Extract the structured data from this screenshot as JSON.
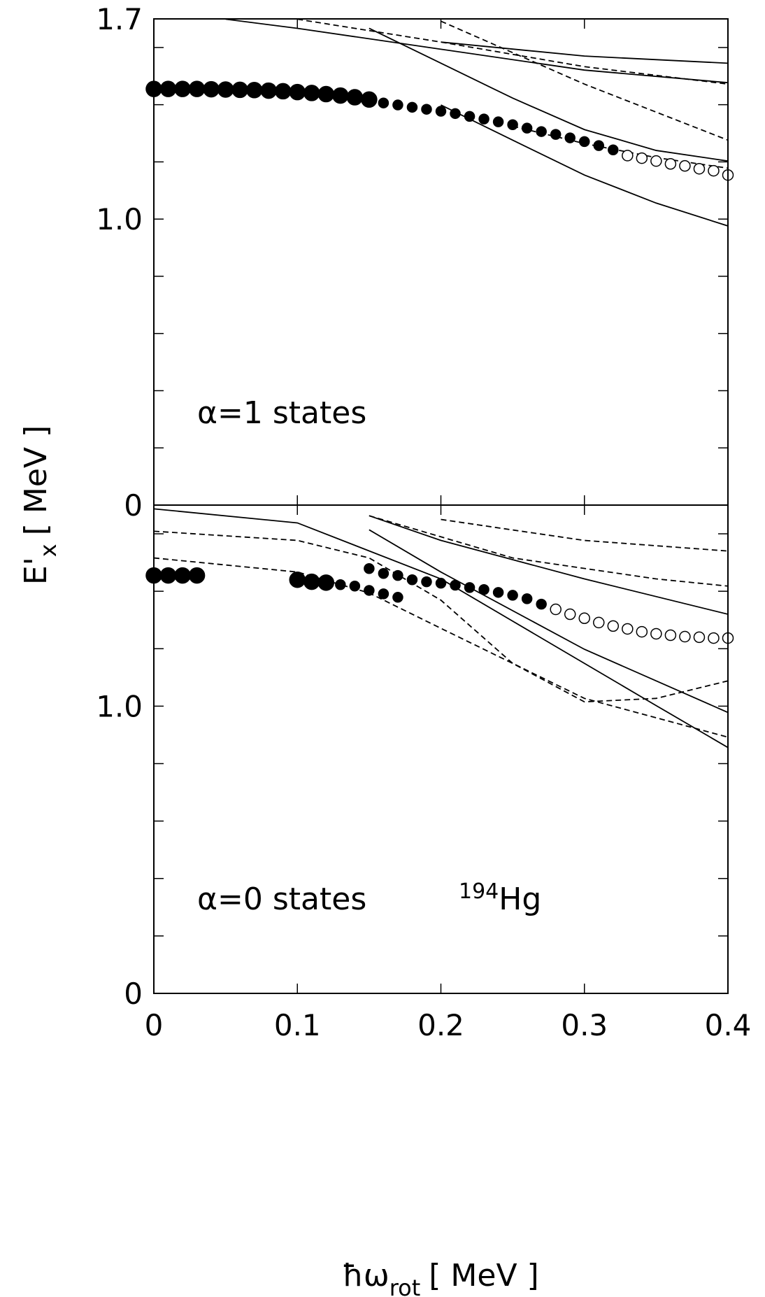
{
  "chart_data": [
    {
      "type": "scatter",
      "ylabel": {
        "main": "E'",
        "sub": "x",
        "unit": "[ MeV ]"
      },
      "annotation": "α=1 states",
      "xlim": [
        0,
        0.4
      ],
      "ylim": [
        0,
        1.7
      ],
      "xticks": [
        0,
        0.1,
        0.2,
        0.3,
        0.4
      ],
      "xtick_labels": false,
      "yticks": [
        0,
        {
          "value": 1,
          "label": "1.0"
        },
        1.7
      ],
      "yminor": [
        0.2,
        0.4,
        0.6,
        0.8,
        1.2,
        1.4,
        1.6
      ],
      "series": [
        {
          "marker": "filled-large",
          "color": "#000",
          "x": [
            0,
            0.01,
            0.02,
            0.03,
            0.04,
            0.05,
            0.06,
            0.07,
            0.08,
            0.09,
            0.1,
            0.11,
            0.12,
            0.13,
            0.14,
            0.15
          ],
          "values": [
            1.455,
            1.455,
            1.455,
            1.455,
            1.454,
            1.453,
            1.452,
            1.451,
            1.449,
            1.447,
            1.444,
            1.441,
            1.437,
            1.432,
            1.426,
            1.418
          ]
        },
        {
          "marker": "filled-small",
          "color": "#000",
          "x": [
            0.16,
            0.17,
            0.18,
            0.19,
            0.2,
            0.21,
            0.22,
            0.23,
            0.24,
            0.25,
            0.26,
            0.27,
            0.28,
            0.29,
            0.3,
            0.31,
            0.32
          ],
          "values": [
            1.406,
            1.399,
            1.391,
            1.384,
            1.377,
            1.369,
            1.359,
            1.35,
            1.34,
            1.33,
            1.318,
            1.306,
            1.296,
            1.284,
            1.271,
            1.257,
            1.242
          ]
        },
        {
          "marker": "open",
          "color": "#000",
          "x": [
            0.33,
            0.34,
            0.35,
            0.36,
            0.37,
            0.38,
            0.39,
            0.4
          ],
          "values": [
            1.222,
            1.213,
            1.203,
            1.193,
            1.186,
            1.176,
            1.169,
            1.154
          ]
        },
        {
          "line": "solid",
          "color": "#000",
          "x": [
            0.2,
            0.25,
            0.3,
            0.35,
            0.4
          ],
          "values": [
            1.399,
            1.276,
            1.154,
            1.056,
            0.976
          ]
        },
        {
          "line": "solid",
          "color": "#000",
          "x": [
            0.15,
            0.2,
            0.25,
            0.3,
            0.35,
            0.4
          ],
          "values": [
            1.667,
            1.545,
            1.423,
            1.313,
            1.24,
            1.203
          ]
        },
        {
          "line": "solid",
          "color": "#000",
          "x": [
            0.05,
            0.1,
            0.2,
            0.3,
            0.4
          ],
          "values": [
            1.699,
            1.667,
            1.594,
            1.521,
            1.477
          ]
        },
        {
          "line": "solid",
          "color": "#000",
          "x": [
            0.2,
            0.3,
            0.4
          ],
          "values": [
            1.619,
            1.57,
            1.545
          ]
        },
        {
          "line": "dashed",
          "color": "#000",
          "x": [
            0.25,
            0.3,
            0.35,
            0.4
          ],
          "values": [
            1.325,
            1.264,
            1.215,
            1.178
          ]
        },
        {
          "line": "dashed",
          "color": "#000",
          "x": [
            0.1,
            0.2,
            0.3,
            0.4
          ],
          "values": [
            1.699,
            1.619,
            1.533,
            1.472
          ]
        },
        {
          "line": "dashed",
          "color": "#000",
          "x": [
            0.2,
            0.3,
            0.4
          ],
          "values": [
            1.692,
            1.472,
            1.276
          ]
        }
      ]
    },
    {
      "type": "scatter",
      "xlabel": {
        "main": "ħω",
        "sub": "rot",
        "unit": "[ MeV ]"
      },
      "annotation": "α=0 states",
      "nucleus": {
        "sup": "194",
        "main": "Hg"
      },
      "xlim": [
        0,
        0.4
      ],
      "ylim": [
        0,
        1.7
      ],
      "xticks": [
        0,
        0.1,
        0.2,
        0.3,
        0.4
      ],
      "xtick_labels": true,
      "yticks": [
        0,
        {
          "value": 1,
          "label": "1.0"
        }
      ],
      "yminor": [
        0.2,
        0.4,
        0.6,
        0.8,
        1.2,
        1.4,
        1.6
      ],
      "series": [
        {
          "marker": "filled-large",
          "color": "#000",
          "x": [
            0,
            0.01,
            0.02,
            0.03,
            0.1,
            0.11,
            0.12
          ],
          "values": [
            1.455,
            1.455,
            1.455,
            1.455,
            1.44,
            1.433,
            1.43
          ]
        },
        {
          "marker": "filled-small",
          "color": "#000",
          "x": [
            0.15,
            0.16,
            0.17,
            0.18,
            0.19,
            0.2,
            0.21,
            0.22,
            0.23,
            0.24,
            0.25,
            0.26,
            0.27
          ],
          "values": [
            1.479,
            1.462,
            1.455,
            1.44,
            1.433,
            1.428,
            1.421,
            1.413,
            1.406,
            1.396,
            1.386,
            1.374,
            1.355
          ]
        },
        {
          "marker": "filled-small",
          "color": "#000",
          "x": [
            0.13,
            0.14,
            0.15,
            0.16,
            0.17
          ],
          "values": [
            1.423,
            1.418,
            1.403,
            1.391,
            1.379
          ]
        },
        {
          "marker": "open",
          "color": "#000",
          "x": [
            0.28,
            0.29,
            0.3,
            0.31,
            0.32,
            0.33,
            0.34,
            0.35,
            0.36,
            0.37,
            0.38,
            0.39,
            0.4
          ],
          "values": [
            1.337,
            1.32,
            1.306,
            1.291,
            1.279,
            1.269,
            1.259,
            1.252,
            1.247,
            1.242,
            1.24,
            1.237,
            1.237
          ]
        },
        {
          "line": "solid",
          "color": "#000",
          "x": [
            0,
            0.1,
            0.2,
            0.25,
            0.3,
            0.35,
            0.4
          ],
          "values": [
            1.687,
            1.638,
            1.443,
            1.296,
            1.149,
            1.002,
            0.856
          ]
        },
        {
          "line": "solid",
          "color": "#000",
          "x": [
            0.15,
            0.2,
            0.3,
            0.4
          ],
          "values": [
            1.614,
            1.467,
            1.198,
            0.978
          ]
        },
        {
          "line": "solid",
          "color": "#000",
          "x": [
            0.15,
            0.2,
            0.3,
            0.4
          ],
          "values": [
            1.663,
            1.577,
            1.443,
            1.32
          ]
        },
        {
          "line": "dashed",
          "color": "#000",
          "x": [
            0,
            0.1,
            0.15,
            0.2,
            0.25,
            0.3,
            0.35,
            0.4
          ],
          "values": [
            1.609,
            1.577,
            1.516,
            1.369,
            1.149,
            1.015,
            1.027,
            1.088
          ]
        },
        {
          "line": "dashed",
          "color": "#000",
          "x": [
            0,
            0.1,
            0.15,
            0.2,
            0.3,
            0.4
          ],
          "values": [
            1.516,
            1.467,
            1.394,
            1.271,
            1.027,
            0.892
          ]
        },
        {
          "line": "dashed",
          "color": "#000",
          "x": [
            0.15,
            0.25,
            0.35,
            0.4
          ],
          "values": [
            1.663,
            1.516,
            1.443,
            1.418
          ]
        },
        {
          "line": "dashed",
          "color": "#000",
          "x": [
            0.2,
            0.3,
            0.4
          ],
          "values": [
            1.65,
            1.577,
            1.54
          ]
        }
      ]
    }
  ]
}
